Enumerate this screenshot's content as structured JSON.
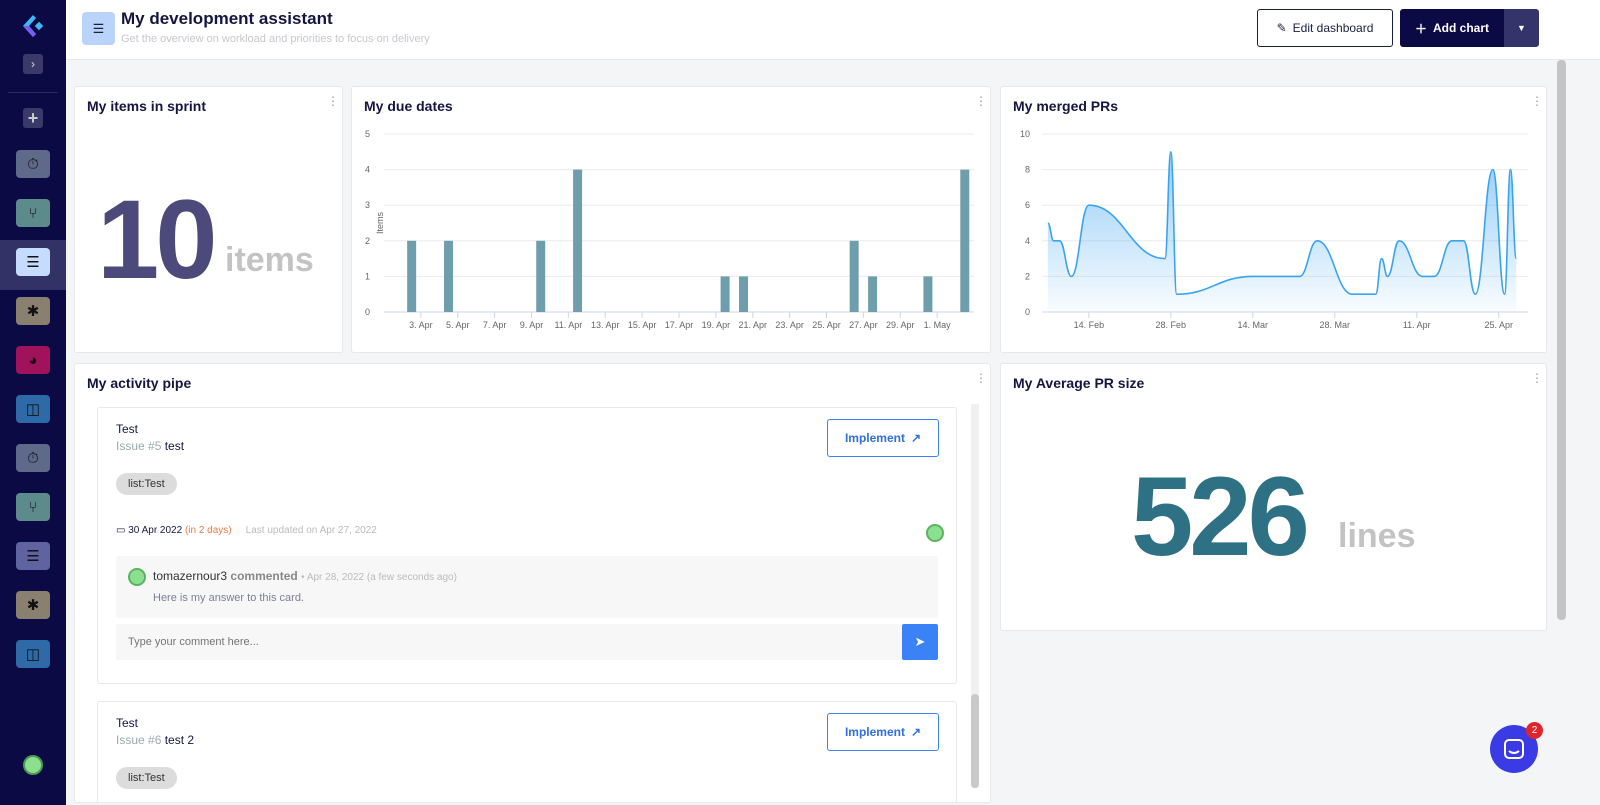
{
  "header": {
    "title": "My development assistant",
    "subtitle": "Get the overview on workload and priorities to focus on delivery",
    "edit_label": "Edit dashboard",
    "add_label": "Add chart"
  },
  "sidebar": {
    "items": [
      "timer",
      "git-branch",
      "checklist",
      "bug",
      "pie-chart",
      "columns",
      "timer",
      "git-branch",
      "checklist",
      "bug",
      "columns"
    ],
    "colors": [
      "#5f6a8a",
      "#5d8a8a",
      "#c6dcff",
      "#8a8070",
      "#a0125c",
      "#2f6aa8",
      "#5f6a8a",
      "#5d8a8a",
      "#5f64a0",
      "#8a8070",
      "#2f6aa8"
    ]
  },
  "items_in_sprint": {
    "title": "My items in sprint",
    "value": "10",
    "unit": "items",
    "color": "#4b4a7a"
  },
  "due_dates": {
    "title": "My due dates"
  },
  "merged_prs": {
    "title": "My merged PRs"
  },
  "avg_pr": {
    "title": "My Average PR size",
    "value": "526",
    "unit": "lines",
    "color": "#2e7185"
  },
  "activity": {
    "title": "My activity pipe",
    "items": [
      {
        "title": "Test",
        "issue": "Issue #5",
        "name": "test",
        "tag": "list:Test",
        "implement": "Implement",
        "due": "30 Apr 2022",
        "due_rel": "(in 2 days)",
        "updated": "Last updated on Apr 27, 2022",
        "comment": {
          "user": "tomazernour3",
          "action": "commented",
          "date": "Apr 28, 2022",
          "rel": "(a few seconds ago)",
          "text": "Here is my answer to this card."
        },
        "comment_placeholder": "Type your comment here..."
      },
      {
        "title": "Test",
        "issue": "Issue #6",
        "name": "test 2",
        "tag": "list:Test",
        "implement": "Implement"
      }
    ]
  },
  "chat": {
    "badge": "2"
  },
  "chart_data": [
    {
      "type": "bar",
      "title": "My due dates",
      "ylabel": "Items",
      "ylim": [
        0,
        5
      ],
      "yticks": [
        0,
        1,
        2,
        3,
        4,
        5
      ],
      "xticks": [
        "3. Apr",
        "5. Apr",
        "7. Apr",
        "9. Apr",
        "11. Apr",
        "13. Apr",
        "15. Apr",
        "17. Apr",
        "19. Apr",
        "21. Apr",
        "23. Apr",
        "25. Apr",
        "27. Apr",
        "29. Apr",
        "1. May"
      ],
      "x": [
        "2022-04-02",
        "2022-04-04",
        "2022-04-09",
        "2022-04-11",
        "2022-04-19",
        "2022-04-20",
        "2022-04-26",
        "2022-04-27",
        "2022-04-30",
        "2022-05-02"
      ],
      "values": [
        2,
        2,
        2,
        4,
        1,
        1,
        2,
        1,
        1,
        4
      ],
      "color": "#6e9eab",
      "grid": true
    },
    {
      "type": "area",
      "title": "My merged PRs",
      "ylim": [
        0,
        10
      ],
      "yticks": [
        0,
        2,
        4,
        6,
        8,
        10
      ],
      "xticks": [
        "14. Feb",
        "28. Feb",
        "14. Mar",
        "28. Mar",
        "11. Apr",
        "25. Apr"
      ],
      "x": [
        "2022-02-07",
        "2022-02-08",
        "2022-02-09",
        "2022-02-11",
        "2022-02-14",
        "2022-02-27",
        "2022-02-28",
        "2022-03-01",
        "2022-03-14",
        "2022-03-22",
        "2022-03-25",
        "2022-03-31",
        "2022-04-04",
        "2022-04-05",
        "2022-04-06",
        "2022-04-08",
        "2022-04-12",
        "2022-04-14",
        "2022-04-17",
        "2022-04-19",
        "2022-04-21",
        "2022-04-24",
        "2022-04-26",
        "2022-04-27",
        "2022-04-28"
      ],
      "values": [
        5,
        4,
        4,
        2,
        6,
        3,
        9,
        1,
        2,
        2,
        4,
        1,
        1,
        3,
        2,
        4,
        2,
        2,
        4,
        4,
        1,
        8,
        1,
        8,
        3
      ],
      "color": "#3aa3f0",
      "grid": true
    }
  ]
}
